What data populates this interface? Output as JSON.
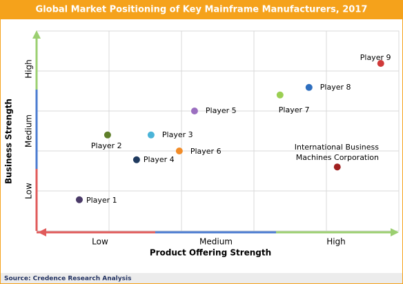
{
  "chart_data": {
    "type": "scatter",
    "title": "Global Market Positioning of Key Mainframe Manufacturers, 2017",
    "x_label": "Product Offering Strength",
    "y_label": "Business Strength",
    "x_categories": [
      "Low",
      "Medium",
      "High"
    ],
    "y_categories": [
      "Low",
      "Medium",
      "High"
    ],
    "xlim": [
      0,
      5
    ],
    "ylim": [
      0,
      5
    ],
    "xgrid": [
      1,
      2,
      3,
      4
    ],
    "ygrid": [
      1,
      2,
      3,
      4
    ],
    "points": [
      {
        "name": "Player 1",
        "x": 0.59,
        "y": 0.78,
        "color": "#4a3a68"
      },
      {
        "name": "Player 2",
        "x": 0.98,
        "y": 2.4,
        "color": "#5f7f2a"
      },
      {
        "name": "Player 3",
        "x": 1.58,
        "y": 2.4,
        "color": "#4bb4d8"
      },
      {
        "name": "Player 4",
        "x": 1.38,
        "y": 1.78,
        "color": "#1f3a5f"
      },
      {
        "name": "Player 5",
        "x": 2.18,
        "y": 3.0,
        "color": "#9b6fc0"
      },
      {
        "name": "Player 6",
        "x": 1.97,
        "y": 2.0,
        "color": "#f28c28"
      },
      {
        "name": "Player 7",
        "x": 3.36,
        "y": 3.4,
        "color": "#9bcf53"
      },
      {
        "name": "Player 8",
        "x": 3.76,
        "y": 3.59,
        "color": "#2f6fbf"
      },
      {
        "name": "Player 9",
        "x": 4.75,
        "y": 4.19,
        "color": "#d03a3a"
      },
      {
        "name": "International Business Machines Corporation",
        "x": 4.15,
        "y": 1.6,
        "color": "#a02020"
      }
    ]
  },
  "source": "Source: Credence Research Analysis"
}
